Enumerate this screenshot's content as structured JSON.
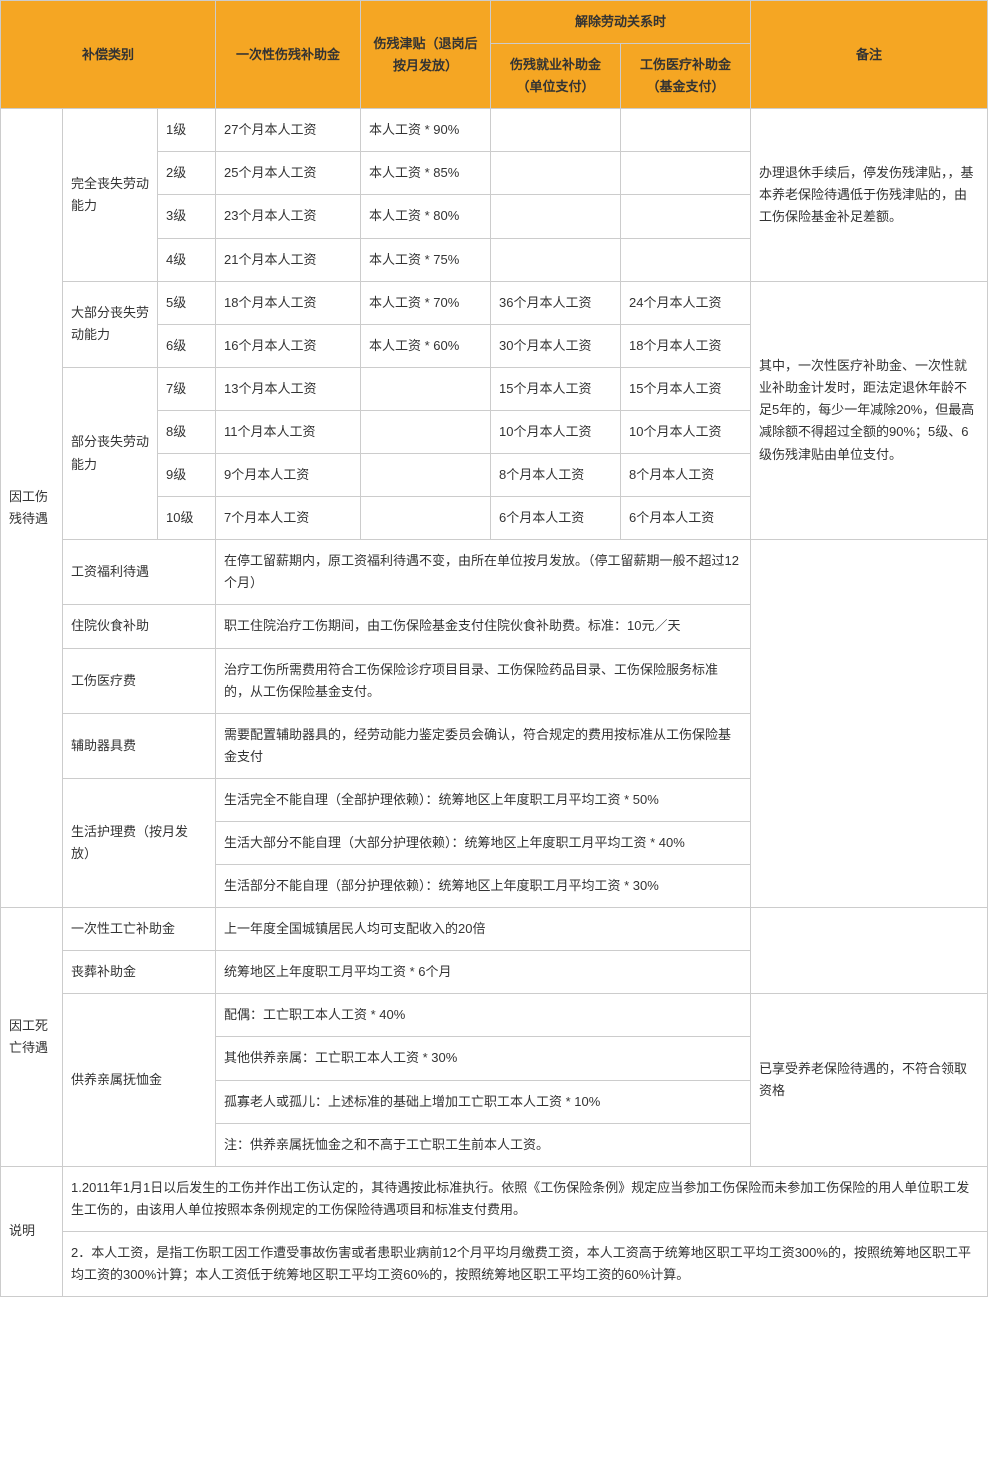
{
  "header": {
    "category": "补偿类别",
    "lump_sum": "一次性伤残补助金",
    "allowance": "伤残津贴（退岗后按月发放）",
    "termination": "解除劳动关系时",
    "emp_subsidy": "伤残就业补助金（单位支付）",
    "med_subsidy": "工伤医疗补助金（基金支付）",
    "note": "备注"
  },
  "section_injury": "因工伤残待遇",
  "group_full": "完全丧失劳动能力",
  "group_most": "大部分丧失劳动能力",
  "group_part": "部分丧失劳动能力",
  "levels": {
    "l1": {
      "level": "1级",
      "lump": "27个月本人工资",
      "allow": "本人工资 * 90%"
    },
    "l2": {
      "level": "2级",
      "lump": "25个月本人工资",
      "allow": "本人工资 * 85%"
    },
    "l3": {
      "level": "3级",
      "lump": "23个月本人工资",
      "allow": "本人工资 * 80%"
    },
    "l4": {
      "level": "4级",
      "lump": "21个月本人工资",
      "allow": "本人工资 * 75%"
    },
    "l5": {
      "level": "5级",
      "lump": "18个月本人工资",
      "allow": "本人工资 * 70%",
      "emp": "36个月本人工资",
      "med": "24个月本人工资"
    },
    "l6": {
      "level": "6级",
      "lump": "16个月本人工资",
      "allow": "本人工资 * 60%",
      "emp": "30个月本人工资",
      "med": "18个月本人工资"
    },
    "l7": {
      "level": "7级",
      "lump": "13个月本人工资",
      "emp": "15个月本人工资",
      "med": "15个月本人工资"
    },
    "l8": {
      "level": "8级",
      "lump": "11个月本人工资",
      "emp": "10个月本人工资",
      "med": "10个月本人工资"
    },
    "l9": {
      "level": "9级",
      "lump": "9个月本人工资",
      "emp": "8个月本人工资",
      "med": "8个月本人工资"
    },
    "l10": {
      "level": "10级",
      "lump": "7个月本人工资",
      "emp": "6个月本人工资",
      "med": "6个月本人工资"
    }
  },
  "note_full": "办理退休手续后，停发伤残津贴，，基本养老保险待遇低于伤残津贴的，由工伤保险基金补足差额。",
  "note_partial": "其中，一次性医疗补助金、一次性就业补助金计发时，距法定退休年龄不足5年的，每少一年减除20%，但最高减除额不得超过全额的90%；5级、6级伤残津贴由单位支付。",
  "rows_other": {
    "wage_label": "工资福利待遇",
    "wage_text": "在停工留薪期内，原工资福利待遇不变，由所在单位按月发放。（停工留薪期一般不超过12个月）",
    "hospital_label": "住院伙食补助",
    "hospital_text": "职工住院治疗工伤期间，由工伤保险基金支付住院伙食补助费。标准：10元／天",
    "medexp_label": "工伤医疗费",
    "medexp_text": "治疗工伤所需费用符合工伤保险诊疗项目目录、工伤保险药品目录、工伤保险服务标准的，从工伤保险基金支付。",
    "aid_label": "辅助器具费",
    "aid_text": "需要配置辅助器具的，经劳动能力鉴定委员会确认，符合规定的费用按标准从工伤保险基金支付",
    "care_label": "生活护理费（按月发放）",
    "care1": "生活完全不能自理（全部护理依赖）：统筹地区上年度职工月平均工资 * 50%",
    "care2": "生活大部分不能自理（大部分护理依赖）：统筹地区上年度职工月平均工资 * 40%",
    "care3": "生活部分不能自理（部分护理依赖）：统筹地区上年度职工月平均工资 * 30%"
  },
  "section_death": "因工死亡待遇",
  "death": {
    "once_label": "一次性工亡补助金",
    "once_text": "上一年度全国城镇居民人均可支配收入的20倍",
    "funeral_label": "丧葬补助金",
    "funeral_text": "统筹地区上年度职工月平均工资 * 6个月",
    "dependent_label": "供养亲属抚恤金",
    "dep1": "配偶：工亡职工本人工资 * 40%",
    "dep2": "其他供养亲属：工亡职工本人工资 * 30%",
    "dep3": "孤寡老人或孤儿：上述标准的基础上增加工亡职工本人工资 * 10%",
    "dep4": "注：供养亲属抚恤金之和不高于工亡职工生前本人工资。",
    "dep_note": "已享受养老保险待遇的，不符合领取资格"
  },
  "explain_label": "说明",
  "explain1": "1.2011年1月1日以后发生的工伤并作出工伤认定的，其待遇按此标准执行。依照《工伤保险条例》规定应当参加工伤保险而未参加工伤保险的用人单位职工发生工伤的，由该用人单位按照本条例规定的工伤保险待遇项目和标准支付费用。",
  "explain2": "2．本人工资，是指工伤职工因工作遭受事故伤害或者患职业病前12个月平均月缴费工资，本人工资高于统筹地区职工平均工资300%的，按照统筹地区职工平均工资的300%计算；本人工资低于统筹地区职工平均工资60%的，按照统筹地区职工平均工资的60%计算。"
}
